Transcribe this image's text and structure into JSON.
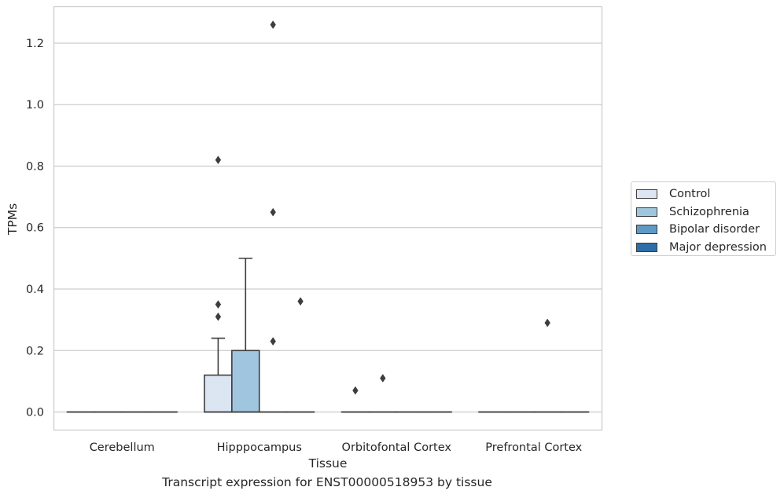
{
  "chart_data": {
    "type": "box",
    "title": "",
    "caption": "Transcript expression for ENST00000518953 by tissue",
    "xlabel": "Tissue",
    "ylabel": "TPMs",
    "ylim": [
      -0.06,
      1.32
    ],
    "yticks": [
      "0.0",
      "0.2",
      "0.4",
      "0.6",
      "0.8",
      "1.0",
      "1.2"
    ],
    "grid": "horizontal",
    "legend_position": "right",
    "categories": [
      "Cerebellum",
      "Hipppocampus",
      "Orbitofontal Cortex",
      "Prefrontal Cortex"
    ],
    "series": [
      {
        "name": "Control",
        "color": "#dbe6f2",
        "boxes": [
          {
            "category": "Cerebellum",
            "q1": 0,
            "median": 0,
            "q3": 0,
            "whisker_low": 0,
            "whisker_high": 0,
            "outliers": []
          },
          {
            "category": "Hipppocampus",
            "q1": 0,
            "median": 0,
            "q3": 0.12,
            "whisker_low": 0,
            "whisker_high": 0.24,
            "outliers": [
              0.31,
              0.35,
              0.82
            ]
          },
          {
            "category": "Orbitofontal Cortex",
            "q1": 0,
            "median": 0,
            "q3": 0,
            "whisker_low": 0,
            "whisker_high": 0,
            "outliers": [
              0.07
            ]
          },
          {
            "category": "Prefrontal Cortex",
            "q1": 0,
            "median": 0,
            "q3": 0,
            "whisker_low": 0,
            "whisker_high": 0,
            "outliers": []
          }
        ]
      },
      {
        "name": "Schizophrenia",
        "color": "#9fc6de",
        "boxes": [
          {
            "category": "Cerebellum",
            "q1": 0,
            "median": 0,
            "q3": 0,
            "whisker_low": 0,
            "whisker_high": 0,
            "outliers": []
          },
          {
            "category": "Hipppocampus",
            "q1": 0,
            "median": 0,
            "q3": 0.2,
            "whisker_low": 0,
            "whisker_high": 0.5,
            "outliers": []
          },
          {
            "category": "Orbitofontal Cortex",
            "q1": 0,
            "median": 0,
            "q3": 0,
            "whisker_low": 0,
            "whisker_high": 0,
            "outliers": [
              0.11
            ]
          },
          {
            "category": "Prefrontal Cortex",
            "q1": 0,
            "median": 0,
            "q3": 0,
            "whisker_low": 0,
            "whisker_high": 0,
            "outliers": []
          }
        ]
      },
      {
        "name": "Bipolar disorder",
        "color": "#5d9ac7",
        "boxes": [
          {
            "category": "Cerebellum",
            "q1": 0,
            "median": 0,
            "q3": 0,
            "whisker_low": 0,
            "whisker_high": 0,
            "outliers": []
          },
          {
            "category": "Hipppocampus",
            "q1": 0,
            "median": 0,
            "q3": 0,
            "whisker_low": 0,
            "whisker_high": 0,
            "outliers": [
              0.23,
              0.65,
              1.26
            ]
          },
          {
            "category": "Orbitofontal Cortex",
            "q1": 0,
            "median": 0,
            "q3": 0,
            "whisker_low": 0,
            "whisker_high": 0,
            "outliers": []
          },
          {
            "category": "Prefrontal Cortex",
            "q1": 0,
            "median": 0,
            "q3": 0,
            "whisker_low": 0,
            "whisker_high": 0,
            "outliers": [
              0.29
            ]
          }
        ]
      },
      {
        "name": "Major depression",
        "color": "#2d6ea8",
        "boxes": [
          {
            "category": "Cerebellum",
            "q1": 0,
            "median": 0,
            "q3": 0,
            "whisker_low": 0,
            "whisker_high": 0,
            "outliers": []
          },
          {
            "category": "Hipppocampus",
            "q1": 0,
            "median": 0,
            "q3": 0,
            "whisker_low": 0,
            "whisker_high": 0,
            "outliers": [
              0.36
            ]
          },
          {
            "category": "Orbitofontal Cortex",
            "q1": 0,
            "median": 0,
            "q3": 0,
            "whisker_low": 0,
            "whisker_high": 0,
            "outliers": []
          },
          {
            "category": "Prefrontal Cortex",
            "q1": 0,
            "median": 0,
            "q3": 0,
            "whisker_low": 0,
            "whisker_high": 0,
            "outliers": []
          }
        ]
      }
    ]
  }
}
